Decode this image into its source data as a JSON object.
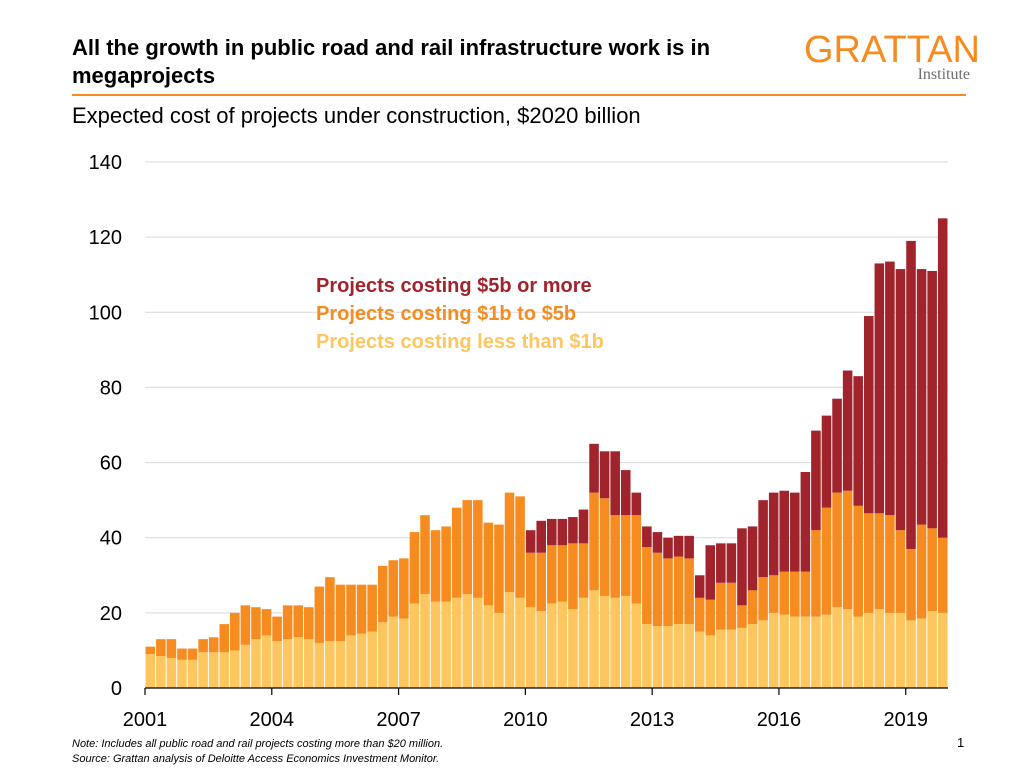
{
  "header": {
    "title": "All the growth in public road and rail infrastructure work is in megaprojects",
    "subtitle": "Expected cost of projects under construction, $2020 billion"
  },
  "logo": {
    "name": "GRATTAN",
    "tagline": "Institute"
  },
  "footer": {
    "note": "Note: Includes all public road and rail projects costing more than $20 million.",
    "source": "Source: Grattan analysis of Deloitte Access Economics Investment Monitor.",
    "page_number": "1"
  },
  "chart_data": {
    "type": "bar",
    "stacked": true,
    "x_start_year": 2001,
    "x_step_years": 0.25,
    "ylim": [
      0,
      140
    ],
    "y_ticks": [
      0,
      20,
      40,
      60,
      80,
      100,
      120,
      140
    ],
    "x_ticks": [
      2001,
      2004,
      2007,
      2010,
      2013,
      2016,
      2019
    ],
    "x_tick_labels": [
      "2001",
      "2004",
      "2007",
      "2010",
      "2013",
      "2016",
      "2019"
    ],
    "grid": "horizontal",
    "legend_position": "inline upper-center",
    "series": [
      {
        "name": "Projects costing less than $1b",
        "color": "#fdc65f",
        "values": [
          9,
          8.5,
          8,
          7.5,
          7.5,
          9.5,
          9.5,
          9.5,
          10,
          11.5,
          13,
          14,
          12.5,
          13,
          13.5,
          13,
          12,
          12.5,
          12.5,
          14,
          14.5,
          15,
          17.5,
          19,
          18.5,
          22.5,
          25,
          23,
          23,
          24,
          25,
          24,
          22,
          20,
          25.5,
          24,
          21.5,
          20.5,
          22.5,
          23,
          21,
          24,
          26,
          24.5,
          24,
          24.5,
          22.5,
          17,
          16.5,
          16.5,
          17,
          17,
          15,
          14,
          15.5,
          15.5,
          16,
          17,
          18,
          20,
          19.5,
          19,
          19,
          19,
          19.5,
          21.5,
          21,
          19,
          20,
          21,
          20,
          20,
          18,
          18.5,
          20.5,
          20
        ]
      },
      {
        "name": "Projects costing $1b to $5b",
        "color": "#f68b1f",
        "values": [
          2,
          4.5,
          5,
          3,
          3,
          3.5,
          4,
          7.5,
          10,
          10.5,
          8.5,
          7,
          6.5,
          9,
          8.5,
          8.5,
          15,
          17,
          15,
          13.5,
          13,
          12.5,
          15,
          15,
          16,
          19,
          21,
          19,
          20,
          24,
          25,
          26,
          22,
          23.5,
          26.5,
          27,
          14.5,
          15.5,
          15.5,
          15,
          17.5,
          14.5,
          26,
          26,
          22,
          21.5,
          23.5,
          20.5,
          19.5,
          18,
          18,
          17.5,
          9,
          9.5,
          12.5,
          12.5,
          6,
          9,
          11.5,
          10,
          11.5,
          12,
          12,
          23,
          28.5,
          30.5,
          31.5,
          29.5,
          26.5,
          25.5,
          26,
          22,
          19,
          25,
          22,
          20
        ]
      },
      {
        "name": "Projects costing $5b or more",
        "color": "#a1232b",
        "values": [
          0,
          0,
          0,
          0,
          0,
          0,
          0,
          0,
          0,
          0,
          0,
          0,
          0,
          0,
          0,
          0,
          0,
          0,
          0,
          0,
          0,
          0,
          0,
          0,
          0,
          0,
          0,
          0,
          0,
          0,
          0,
          0,
          0,
          0,
          0,
          0,
          6,
          8.5,
          7,
          7,
          7,
          9,
          13,
          12.5,
          17,
          12,
          6,
          5.5,
          5.5,
          5.5,
          5.5,
          6,
          6,
          14.5,
          10.5,
          10.5,
          20.5,
          17,
          20.5,
          22,
          21.5,
          21,
          26.5,
          26.5,
          24.5,
          25,
          32,
          34.5,
          52.5,
          66.5,
          67.5,
          69.5,
          82,
          68,
          68.5,
          85
        ]
      }
    ]
  }
}
